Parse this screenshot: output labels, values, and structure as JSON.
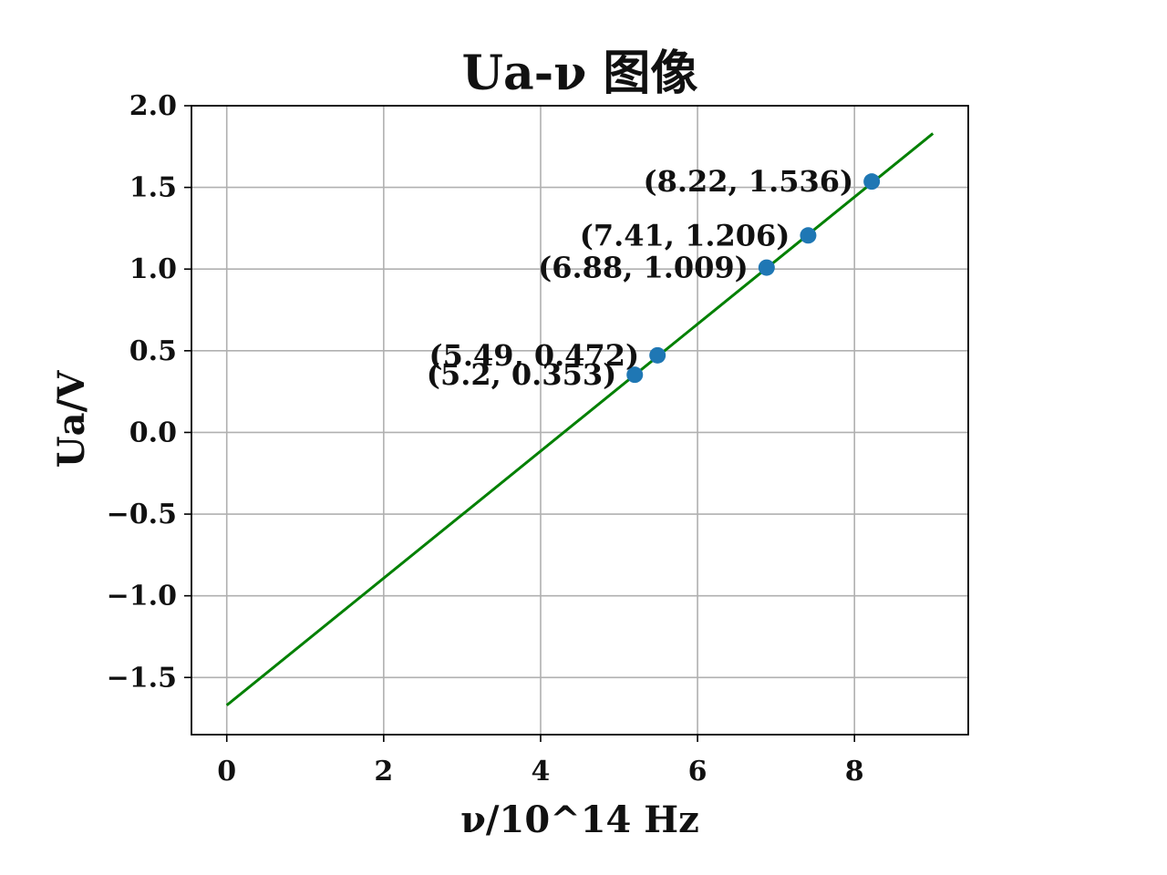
{
  "chart_data": {
    "type": "scatter",
    "title": "Ua-ν 图像",
    "xlabel": "ν/10^14 Hz",
    "ylabel": "Ua/V",
    "xlim": [
      -0.45,
      9.45
    ],
    "ylim": [
      -1.85,
      2.0
    ],
    "xticks": [
      0,
      2,
      4,
      6,
      8
    ],
    "xtick_labels": [
      "0",
      "2",
      "4",
      "6",
      "8"
    ],
    "yticks": [
      -1.5,
      -1.0,
      -0.5,
      0.0,
      0.5,
      1.0,
      1.5,
      2.0
    ],
    "ytick_labels": [
      "−1.5",
      "−1.0",
      "−0.5",
      "0.0",
      "0.5",
      "1.0",
      "1.5",
      "2.0"
    ],
    "grid": true,
    "series": [
      {
        "kind": "points",
        "color": "#1f77b4",
        "x": [
          5.2,
          5.49,
          6.88,
          7.41,
          8.22
        ],
        "y": [
          0.353,
          0.472,
          1.009,
          1.206,
          1.536
        ],
        "labels": [
          "(5.2, 0.353)",
          "(5.49, 0.472)",
          "(6.88, 1.009)",
          "(7.41, 1.206)",
          "(8.22, 1.536)"
        ]
      },
      {
        "kind": "line",
        "color": "#008000",
        "x": [
          0,
          9
        ],
        "y": [
          -1.67,
          1.83
        ]
      }
    ]
  }
}
